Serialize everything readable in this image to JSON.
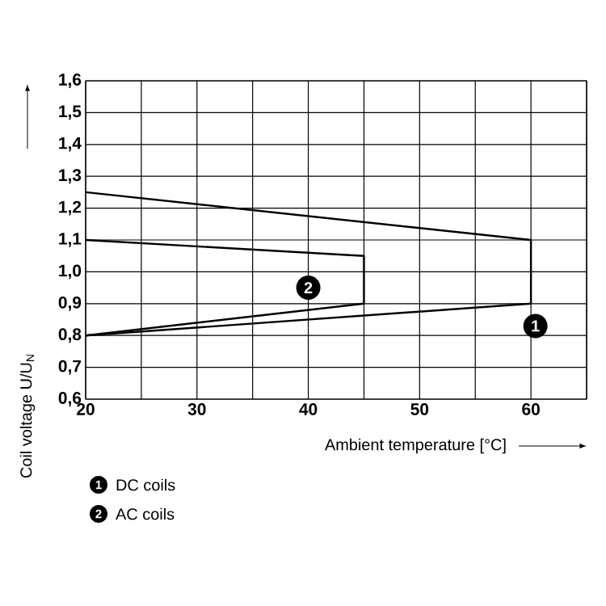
{
  "chart_data": {
    "type": "line",
    "xlabel": "Ambient temperature [°C]",
    "ylabel": "Coil voltage U/U$_{N}$",
    "xlim": [
      20,
      65
    ],
    "xticks": [
      20,
      {
        "value": 25,
        "label": null
      },
      30,
      {
        "value": 35,
        "label": null
      },
      40,
      {
        "value": 45,
        "label": null
      },
      50,
      {
        "value": 55,
        "label": null
      },
      60,
      {
        "value": 65,
        "label": null
      }
    ],
    "ylim": [
      0.6,
      1.6
    ],
    "yticks": [
      {
        "value": 0.6,
        "label": "0,6"
      },
      {
        "value": 0.7,
        "label": "0,7"
      },
      {
        "value": 0.8,
        "label": "0,8"
      },
      {
        "value": 0.9,
        "label": "0,9"
      },
      {
        "value": 1.0,
        "label": "1,0"
      },
      {
        "value": 1.1,
        "label": "1,1"
      },
      {
        "value": 1.2,
        "label": "1,2"
      },
      {
        "value": 1.3,
        "label": "1,3"
      },
      {
        "value": 1.4,
        "label": "1,4"
      },
      {
        "value": 1.5,
        "label": "1,5"
      },
      {
        "value": 1.6,
        "label": "1,6"
      }
    ],
    "grid": true,
    "legend": "bottom left",
    "line_style": "solid",
    "marker": "none",
    "series": [
      {
        "name": "DC coils",
        "color": "#000000",
        "x": [
          20,
          60,
          60,
          20
        ],
        "values": [
          1.25,
          1.1,
          0.9,
          0.8
        ]
      },
      {
        "name": "AC coils",
        "color": "#000000",
        "x": [
          20,
          45,
          45,
          20
        ],
        "values": [
          1.1,
          1.05,
          0.9,
          0.8
        ]
      }
    ],
    "annotations": [
      {
        "text": "1",
        "x": 60.4,
        "y": 0.83
      },
      {
        "text": "2",
        "x": 40,
        "y": 0.95
      }
    ]
  }
}
